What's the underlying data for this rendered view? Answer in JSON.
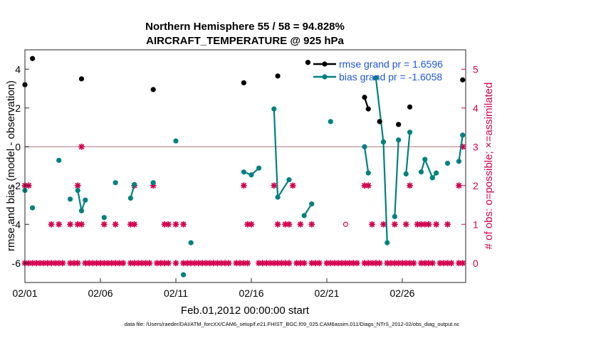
{
  "chart_data": {
    "type": "line",
    "title": "Northern Hemisphere 55 / 58 = 94.828%",
    "subtitle": "AIRCRAFT_TEMPERATURE @ 925 hPa",
    "xlabel": "Feb.01,2012 00:00:00 start",
    "ylabel_left": "rmse and bias (model - observation)",
    "ylabel_right": "# of obs: o=possible; ×=assimilated",
    "footnote": "data file: /Users/raeder/DAI/ATM_forcXX/CAM6_setup/f.e21.FHIST_BGC.f09_025.CAM6assim.011/Diags_NTrS_2012-02/obs_diag_output.nc",
    "xlim": [
      0,
      29.2
    ],
    "ylim_left": [
      -7,
      5
    ],
    "ylim_right": [
      -0.5,
      5.5
    ],
    "xticks": [
      0,
      5,
      10,
      15,
      20,
      25
    ],
    "xtick_labels": [
      "02/01",
      "02/06",
      "02/11",
      "02/16",
      "02/21",
      "02/26"
    ],
    "yticks_left": [
      -6,
      -4,
      -2,
      0,
      2,
      4
    ],
    "yticks_right": [
      0,
      1,
      2,
      3,
      4,
      5
    ],
    "zero_line": 0,
    "colors": {
      "rmse": "#000000",
      "bias": "#008080",
      "obs": "#d4004f",
      "zero": "#c8a0a0"
    },
    "series": [
      {
        "name": "rmse grand pr = 1.6596",
        "axis": "left",
        "points": [
          [
            0,
            3.2
          ],
          [
            0.5,
            4.55
          ],
          [
            3.75,
            3.5
          ],
          [
            8.5,
            2.95
          ],
          [
            14.5,
            3.3
          ],
          [
            16.75,
            3.65
          ],
          [
            18.75,
            4.35
          ],
          [
            22.5,
            2.55
          ],
          [
            22.75,
            1.95
          ],
          [
            23.5,
            1.3
          ],
          [
            24.75,
            1.15
          ],
          [
            25.5,
            2.05
          ],
          [
            29.0,
            3.45
          ]
        ],
        "segments": [
          [
            22.5,
            22.75
          ],
          [
            23.5,
            23.5
          ]
        ]
      },
      {
        "name": "bias grand pr = -1.6058",
        "axis": "left",
        "points": [
          [
            0,
            -2.25
          ],
          [
            0.5,
            -3.15
          ],
          [
            2.25,
            -0.7
          ],
          [
            3.0,
            -2.7
          ],
          [
            3.5,
            -2.25
          ],
          [
            3.75,
            -3.3
          ],
          [
            4.0,
            -2.75
          ],
          [
            5.25,
            -3.65
          ],
          [
            6.0,
            -1.85
          ],
          [
            7.0,
            -2.65
          ],
          [
            7.25,
            -1.95
          ],
          [
            8.5,
            -1.85
          ],
          [
            10.0,
            0.3
          ],
          [
            11.0,
            -4.95
          ],
          [
            10.5,
            -6.6
          ],
          [
            14.5,
            -1.3
          ],
          [
            15.0,
            -1.45
          ],
          [
            15.5,
            -1.1
          ],
          [
            16.5,
            1.95
          ],
          [
            16.75,
            -2.6
          ],
          [
            17.5,
            -1.7
          ],
          [
            18.5,
            -3.55
          ],
          [
            19.0,
            -2.95
          ],
          [
            20.25,
            1.3
          ],
          [
            22.5,
            0.0
          ],
          [
            22.75,
            -1.35
          ],
          [
            23.25,
            3.55
          ],
          [
            23.75,
            0.25
          ],
          [
            24.0,
            -4.95
          ],
          [
            24.5,
            -3.6
          ],
          [
            24.75,
            0.35
          ],
          [
            25.25,
            -1.4
          ],
          [
            25.5,
            0.75
          ],
          [
            26.25,
            -1.3
          ],
          [
            26.5,
            -0.65
          ],
          [
            27.0,
            -1.6
          ],
          [
            27.25,
            -1.35
          ],
          [
            28.0,
            -0.85
          ],
          [
            28.75,
            -0.75
          ],
          [
            29.0,
            0.6
          ]
        ],
        "segments": [
          [
            3.5,
            4.0
          ],
          [
            7.0,
            7.25
          ],
          [
            14.5,
            15.5
          ],
          [
            16.5,
            17.5
          ],
          [
            18.5,
            19.0
          ],
          [
            22.5,
            22.75
          ],
          [
            23.25,
            24.0
          ],
          [
            24.5,
            24.75
          ],
          [
            25.25,
            25.5
          ],
          [
            26.25,
            27.25
          ],
          [
            28.75,
            29.0
          ]
        ]
      },
      {
        "name": "# of obs assimilated",
        "axis": "right",
        "marker": "x",
        "zero_days": [
          0,
          0.25,
          0.5,
          0.75,
          1.0,
          1.25,
          1.5,
          1.75,
          2.0,
          2.25,
          2.5,
          3.0,
          3.25,
          3.5,
          4.0,
          4.25,
          4.5,
          4.75,
          5.0,
          5.25,
          5.5,
          5.75,
          6.0,
          6.25,
          6.5,
          7.0,
          7.25,
          7.5,
          7.75,
          8.0,
          8.25,
          8.75,
          9.0,
          9.25,
          9.5,
          10.0,
          10.5,
          10.75,
          11.0,
          11.25,
          11.5,
          11.75,
          12.0,
          12.25,
          12.5,
          12.75,
          13.0,
          13.25,
          13.5,
          14.0,
          14.25,
          14.5,
          14.75,
          15.5,
          15.75,
          16.0,
          16.25,
          16.5,
          16.75,
          17.0,
          17.25,
          17.5,
          18.0,
          18.25,
          18.5,
          19.0,
          19.25,
          19.5,
          20.0,
          20.25,
          20.5,
          20.75,
          21.0,
          21.25,
          21.5,
          21.75,
          22.0,
          22.5,
          22.75,
          23.0,
          23.25,
          23.5,
          24.0,
          24.25,
          24.5,
          24.75,
          25.0,
          25.25,
          25.5,
          25.75,
          26.25,
          26.5,
          26.75,
          27.0,
          27.5,
          27.75,
          28.0,
          28.25,
          28.75,
          29.0
        ],
        "one_days": [
          1.75,
          2.25,
          3.0,
          3.5,
          3.75,
          5.25,
          6.0,
          7.0,
          7.25,
          9.25,
          9.5,
          10.0,
          10.5,
          14.75,
          15.0,
          16.75,
          17.25,
          17.5,
          18.25,
          19.0,
          23.0,
          23.75,
          24.5,
          25.25,
          26.0,
          26.25,
          26.5,
          26.75,
          27.25,
          28.0
        ],
        "two_days": [
          0,
          0.25,
          3.5,
          7.25,
          8.5,
          14.5,
          16.5,
          17.75,
          22.5,
          22.75,
          25.5,
          28.75
        ],
        "three_days": [
          3.75,
          29.0
        ]
      },
      {
        "name": "# of obs possible",
        "axis": "right",
        "marker": "o",
        "points": [
          [
            21.25,
            1
          ]
        ]
      }
    ]
  }
}
